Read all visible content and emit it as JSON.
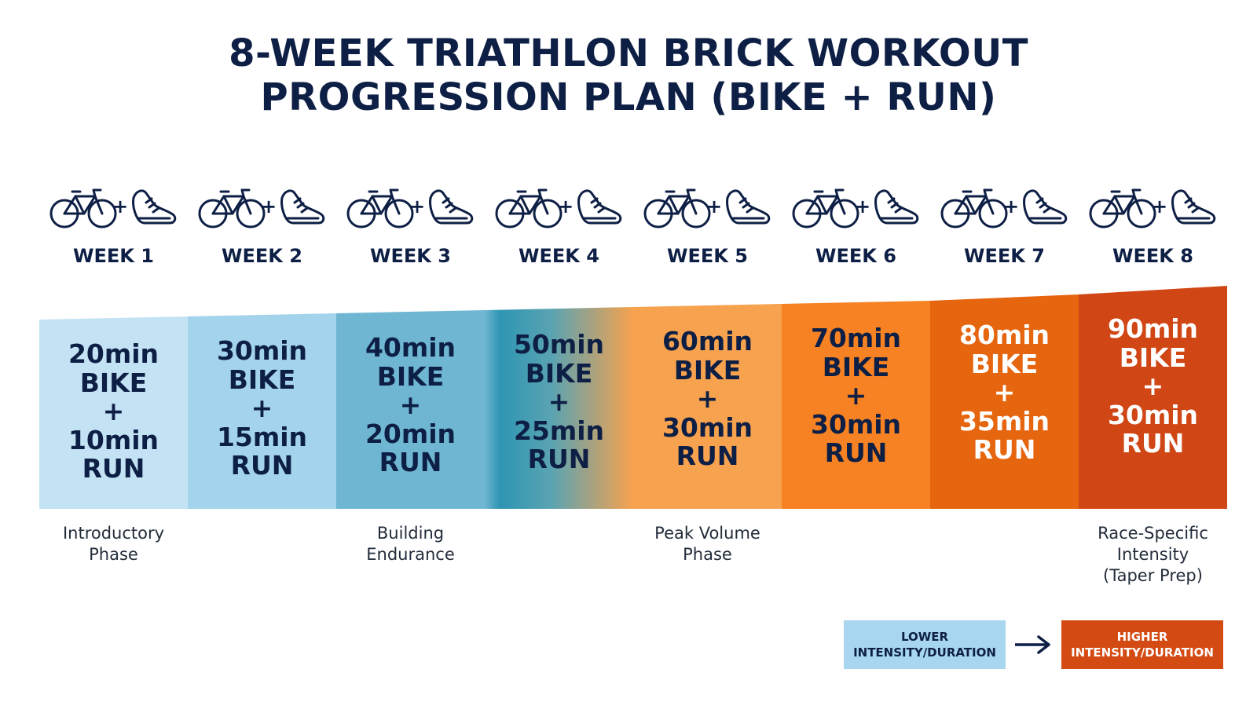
{
  "title": {
    "line1": "8-WEEK TRIATHLON BRICK WORKOUT",
    "line2": "PROGRESSION PLAN (BIKE + RUN)"
  },
  "icons": {
    "bike": "bicycle-icon",
    "plus": "+",
    "run": "running-shoe-icon"
  },
  "weeks": [
    {
      "label": "WEEK 1",
      "bike": "20min",
      "bike_word": "BIKE",
      "plus": "+",
      "run": "10min",
      "run_word": "RUN",
      "color": "#c3e3f5",
      "text_color": "#0e1f45"
    },
    {
      "label": "WEEK 2",
      "bike": "30min",
      "bike_word": "BIKE",
      "plus": "+",
      "run": "15min",
      "run_word": "RUN",
      "color": "#a4d4ec",
      "text_color": "#0e1f45"
    },
    {
      "label": "WEEK 3",
      "bike": "40min",
      "bike_word": "BIKE",
      "plus": "+",
      "run": "20min",
      "run_word": "RUN",
      "color": "#6fb6d3",
      "text_color": "#0e1f45"
    },
    {
      "label": "WEEK 4",
      "bike": "50min",
      "bike_word": "BIKE",
      "plus": "+",
      "run": "25min",
      "run_word": "RUN",
      "color": "#2e95b3",
      "text_color": "#0e1f45"
    },
    {
      "label": "WEEK 5",
      "bike": "60min",
      "bike_word": "BIKE",
      "plus": "+",
      "run": "30min",
      "run_word": "RUN",
      "color": "#f7a24e",
      "text_color": "#0e1f45"
    },
    {
      "label": "WEEK 6",
      "bike": "70min",
      "bike_word": "BIKE",
      "plus": "+",
      "run": "30min",
      "run_word": "RUN",
      "color": "#f68224",
      "text_color": "#0e1f45"
    },
    {
      "label": "WEEK 7",
      "bike": "80min",
      "bike_word": "BIKE",
      "plus": "+",
      "run": "35min",
      "run_word": "RUN",
      "color": "#e6650f",
      "text_color": "#ffffff"
    },
    {
      "label": "WEEK 8",
      "bike": "90min",
      "bike_word": "BIKE",
      "plus": "+",
      "run": "30min",
      "run_word": "RUN",
      "color": "#d04614",
      "text_color": "#ffffff"
    }
  ],
  "phases": [
    {
      "week": 1,
      "lines": [
        "Introductory",
        "Phase"
      ]
    },
    {
      "week": 3,
      "lines": [
        "Building",
        "Endurance"
      ]
    },
    {
      "week": 5,
      "lines": [
        "Peak Volume",
        "Phase"
      ]
    },
    {
      "week": 8,
      "lines": [
        "Race-Specific",
        "Intensity",
        "(Taper Prep)"
      ]
    }
  ],
  "legend": {
    "low_line1": "LOWER",
    "low_line2": "INTENSITY/DURATION",
    "high_line1": "HIGHER",
    "high_line2": "INTENSITY/DURATION",
    "low_color": "#a7d6ee",
    "high_color": "#d44a13"
  }
}
